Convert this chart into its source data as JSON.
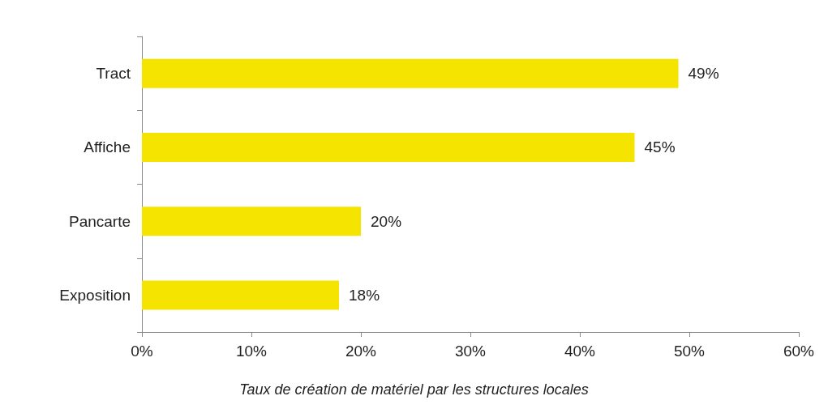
{
  "chart_data": {
    "type": "bar",
    "orientation": "horizontal",
    "xlabel": "Taux de création de matériel par les structures locales",
    "categories": [
      "Tract",
      "Affiche",
      "Pancarte",
      "Exposition"
    ],
    "values": [
      49,
      45,
      20,
      18
    ],
    "value_labels": [
      "49%",
      "45%",
      "20%",
      "18%"
    ],
    "color": "#f5e400",
    "xlim": [
      0,
      60
    ],
    "xticks": [
      {
        "value": 0,
        "label": "0%"
      },
      {
        "value": 10,
        "label": "10%"
      },
      {
        "value": 20,
        "label": "20%"
      },
      {
        "value": 30,
        "label": "30%"
      },
      {
        "value": 40,
        "label": "40%"
      },
      {
        "value": 50,
        "label": "50%"
      },
      {
        "value": 60,
        "label": "60%"
      }
    ],
    "grid": false
  }
}
